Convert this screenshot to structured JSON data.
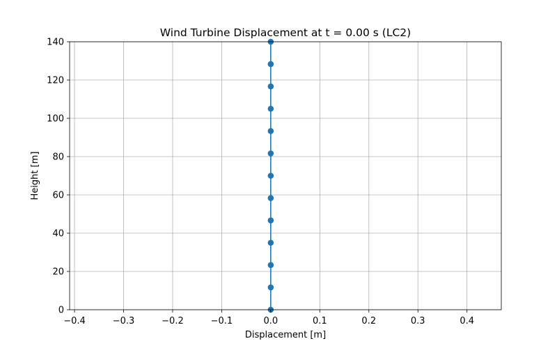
{
  "chart_data": {
    "type": "line",
    "title": "Wind Turbine Displacement at t = 0.00 s (LC2)",
    "xlabel": "Displacement [m]",
    "ylabel": "Height [m]",
    "xlim": [
      -0.41,
      0.47
    ],
    "ylim": [
      0,
      140
    ],
    "xticks": [
      -0.4,
      -0.3,
      -0.2,
      -0.1,
      0.0,
      0.1,
      0.2,
      0.3,
      0.4
    ],
    "xtick_labels": [
      "−0.4",
      "−0.3",
      "−0.2",
      "−0.1",
      "0.0",
      "0.1",
      "0.2",
      "0.3",
      "0.4"
    ],
    "yticks": [
      0,
      20,
      40,
      60,
      80,
      100,
      120,
      140
    ],
    "ytick_labels": [
      "0",
      "20",
      "40",
      "60",
      "80",
      "100",
      "120",
      "140"
    ],
    "grid": true,
    "series": [
      {
        "color": "#1f77b4",
        "marker": "circle",
        "x": [
          0,
          0,
          0,
          0,
          0,
          0,
          0,
          0,
          0,
          0,
          0,
          0,
          0
        ],
        "y": [
          0,
          11.67,
          23.33,
          35.0,
          46.67,
          58.33,
          70.0,
          81.67,
          93.33,
          105.0,
          116.67,
          128.33,
          140.0
        ]
      }
    ]
  }
}
